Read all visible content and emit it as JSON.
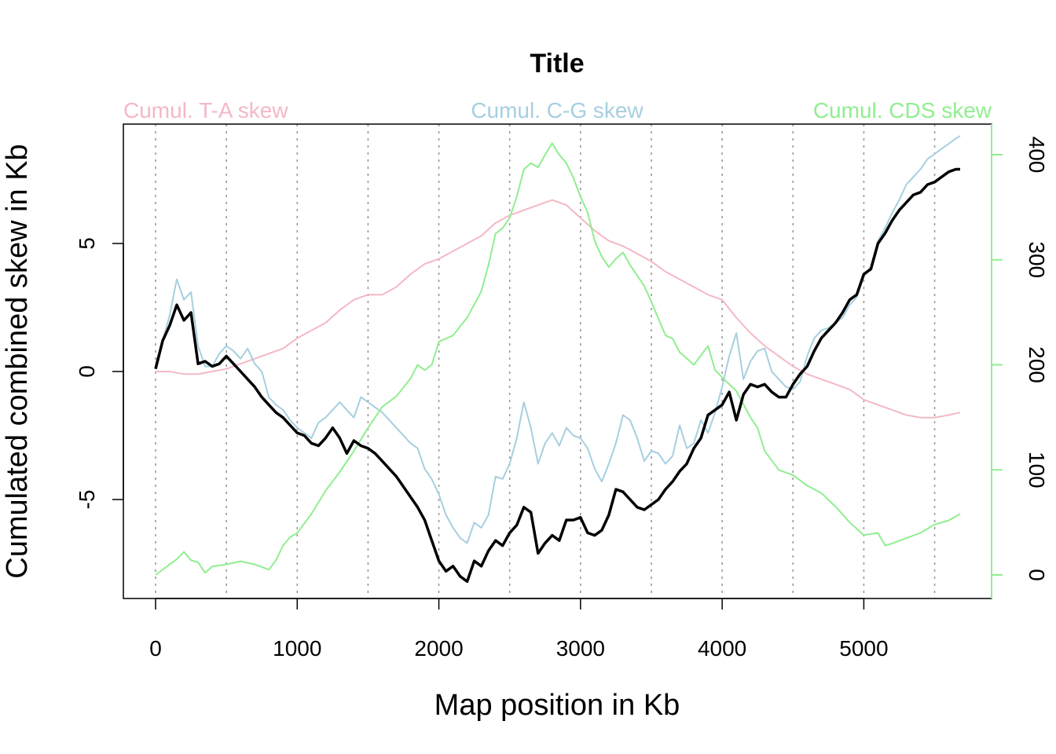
{
  "chart_data": {
    "type": "line",
    "title": "Title",
    "xlabel": "Map position in Kb",
    "ylabel": "Cumulated combined skew in Kb",
    "xlim": [
      0,
      5700
    ],
    "ylim": [
      -8.9,
      9.7
    ],
    "y2lim": [
      -24,
      427
    ],
    "x_ticks": [
      0,
      1000,
      2000,
      3000,
      4000,
      5000
    ],
    "y_ticks": [
      -5,
      0,
      5
    ],
    "y2_ticks": [
      0,
      100,
      200,
      300,
      400
    ],
    "vgrid_x": [
      0,
      500,
      1000,
      1500,
      2000,
      2500,
      3000,
      3500,
      4000,
      4500,
      5000,
      5500
    ],
    "grid": "vertical dotted",
    "legend": {
      "left": "Cumul. T-A skew",
      "center": "Cumul. C-G skew",
      "right": "Cumul. CDS skew"
    },
    "series": [
      {
        "name": "Cumul. T-A skew",
        "axis": "left",
        "color": "#F4B8C5",
        "x": [
          0,
          100,
          200,
          300,
          400,
          500,
          600,
          700,
          800,
          900,
          1000,
          1100,
          1200,
          1300,
          1400,
          1500,
          1600,
          1700,
          1800,
          1900,
          2000,
          2100,
          2200,
          2300,
          2400,
          2500,
          2600,
          2700,
          2800,
          2900,
          3000,
          3100,
          3200,
          3300,
          3400,
          3500,
          3600,
          3700,
          3800,
          3900,
          4000,
          4100,
          4200,
          4300,
          4400,
          4500,
          4600,
          4700,
          4800,
          4900,
          5000,
          5100,
          5200,
          5300,
          5400,
          5500,
          5600,
          5680
        ],
        "y": [
          0.0,
          0.0,
          -0.1,
          -0.1,
          0.0,
          0.1,
          0.3,
          0.5,
          0.7,
          0.9,
          1.3,
          1.6,
          1.9,
          2.4,
          2.8,
          3.0,
          3.0,
          3.3,
          3.8,
          4.2,
          4.4,
          4.7,
          5.0,
          5.3,
          5.8,
          6.1,
          6.3,
          6.5,
          6.7,
          6.5,
          6.0,
          5.5,
          5.1,
          4.9,
          4.6,
          4.3,
          3.9,
          3.6,
          3.3,
          3.0,
          2.8,
          2.1,
          1.5,
          1.0,
          0.6,
          0.2,
          -0.1,
          -0.3,
          -0.5,
          -0.7,
          -1.1,
          -1.3,
          -1.5,
          -1.7,
          -1.8,
          -1.8,
          -1.7,
          -1.6
        ]
      },
      {
        "name": "Cumul. C-G skew",
        "axis": "left",
        "color": "#A6CFE0",
        "x": [
          0,
          50,
          100,
          150,
          200,
          250,
          300,
          350,
          400,
          450,
          500,
          550,
          600,
          650,
          700,
          750,
          800,
          850,
          900,
          950,
          1000,
          1050,
          1100,
          1150,
          1200,
          1250,
          1300,
          1350,
          1400,
          1450,
          1500,
          1550,
          1600,
          1650,
          1700,
          1750,
          1800,
          1850,
          1900,
          1950,
          2000,
          2050,
          2100,
          2150,
          2200,
          2250,
          2300,
          2350,
          2400,
          2450,
          2500,
          2550,
          2600,
          2650,
          2700,
          2750,
          2800,
          2850,
          2900,
          2950,
          3000,
          3050,
          3100,
          3150,
          3200,
          3250,
          3300,
          3350,
          3400,
          3450,
          3500,
          3550,
          3600,
          3650,
          3700,
          3750,
          3800,
          3850,
          3900,
          3950,
          4000,
          4050,
          4100,
          4150,
          4200,
          4250,
          4300,
          4350,
          4400,
          4450,
          4500,
          4550,
          4600,
          4650,
          4700,
          4750,
          4800,
          4850,
          4900,
          4950,
          5000,
          5050,
          5100,
          5150,
          5200,
          5250,
          5300,
          5350,
          5400,
          5450,
          5500,
          5550,
          5600,
          5650,
          5680
        ],
        "y": [
          0.3,
          1.2,
          2.2,
          3.6,
          2.8,
          3.1,
          1.0,
          0.2,
          0.2,
          0.7,
          1.0,
          0.8,
          0.5,
          0.9,
          0.3,
          0.0,
          -1.0,
          -1.3,
          -1.5,
          -1.9,
          -2.2,
          -2.4,
          -2.6,
          -2.0,
          -1.8,
          -1.5,
          -1.2,
          -1.5,
          -1.8,
          -1.0,
          -1.2,
          -1.4,
          -1.6,
          -1.9,
          -2.2,
          -2.5,
          -2.8,
          -3.0,
          -3.8,
          -4.2,
          -4.8,
          -5.6,
          -6.1,
          -6.5,
          -6.7,
          -5.9,
          -6.1,
          -5.6,
          -4.1,
          -4.2,
          -3.6,
          -2.6,
          -1.2,
          -2.2,
          -3.6,
          -2.8,
          -2.4,
          -2.9,
          -2.2,
          -2.5,
          -2.6,
          -3.0,
          -3.8,
          -4.3,
          -3.6,
          -2.8,
          -1.7,
          -1.9,
          -2.6,
          -3.5,
          -3.1,
          -3.2,
          -3.6,
          -3.3,
          -2.1,
          -3.0,
          -2.8,
          -1.9,
          -2.4,
          -1.6,
          -0.6,
          0.6,
          1.5,
          -0.3,
          0.4,
          0.8,
          0.9,
          0.0,
          -0.3,
          -0.6,
          -0.7,
          -0.4,
          0.6,
          1.3,
          1.6,
          1.7,
          1.9,
          2.1,
          2.6,
          2.9,
          3.7,
          4.1,
          5.1,
          5.6,
          6.2,
          6.7,
          7.3,
          7.6,
          7.9,
          8.3,
          8.5,
          8.7,
          8.9,
          9.1,
          9.2
        ]
      },
      {
        "name": "Cumul. CDS skew",
        "axis": "right",
        "color": "#90EE90",
        "x": [
          0,
          100,
          150,
          200,
          250,
          300,
          350,
          400,
          500,
          600,
          700,
          800,
          850,
          900,
          950,
          1000,
          1100,
          1200,
          1300,
          1400,
          1500,
          1600,
          1700,
          1800,
          1850,
          1900,
          1950,
          2000,
          2100,
          2200,
          2300,
          2350,
          2400,
          2450,
          2500,
          2550,
          2600,
          2650,
          2700,
          2750,
          2800,
          2850,
          2900,
          2950,
          3000,
          3050,
          3100,
          3150,
          3200,
          3250,
          3300,
          3350,
          3400,
          3450,
          3500,
          3600,
          3650,
          3700,
          3800,
          3900,
          3950,
          4000,
          4100,
          4200,
          4250,
          4300,
          4400,
          4500,
          4600,
          4700,
          4800,
          4900,
          5000,
          5100,
          5150,
          5200,
          5300,
          5400,
          5500,
          5600,
          5680
        ],
        "y": [
          0,
          10,
          15,
          22,
          14,
          12,
          2,
          8,
          10,
          13,
          10,
          5,
          14,
          28,
          36,
          40,
          58,
          80,
          98,
          118,
          140,
          160,
          170,
          187,
          200,
          195,
          200,
          222,
          228,
          245,
          270,
          295,
          325,
          330,
          340,
          360,
          386,
          392,
          388,
          400,
          411,
          400,
          392,
          378,
          360,
          345,
          318,
          303,
          293,
          301,
          307,
          295,
          285,
          275,
          260,
          228,
          225,
          212,
          200,
          218,
          195,
          188,
          175,
          150,
          140,
          118,
          100,
          95,
          85,
          78,
          65,
          50,
          38,
          40,
          28,
          30,
          35,
          40,
          48,
          52,
          58
        ]
      },
      {
        "name": "",
        "axis": "left",
        "color": "#000000",
        "x": [
          0,
          50,
          100,
          150,
          200,
          250,
          300,
          350,
          400,
          450,
          500,
          550,
          600,
          650,
          700,
          750,
          800,
          850,
          900,
          950,
          1000,
          1050,
          1100,
          1150,
          1200,
          1250,
          1300,
          1350,
          1400,
          1450,
          1500,
          1550,
          1600,
          1650,
          1700,
          1750,
          1800,
          1850,
          1900,
          1950,
          2000,
          2050,
          2100,
          2150,
          2200,
          2250,
          2300,
          2350,
          2400,
          2450,
          2500,
          2550,
          2600,
          2650,
          2700,
          2750,
          2800,
          2850,
          2900,
          2950,
          3000,
          3050,
          3100,
          3150,
          3200,
          3250,
          3300,
          3350,
          3400,
          3450,
          3500,
          3550,
          3600,
          3650,
          3700,
          3750,
          3800,
          3850,
          3900,
          3950,
          4000,
          4050,
          4100,
          4150,
          4200,
          4250,
          4300,
          4350,
          4400,
          4450,
          4500,
          4550,
          4600,
          4650,
          4700,
          4750,
          4800,
          4850,
          4900,
          4950,
          5000,
          5050,
          5100,
          5150,
          5200,
          5250,
          5300,
          5350,
          5400,
          5450,
          5500,
          5550,
          5600,
          5650,
          5680
        ],
        "y": [
          0.1,
          1.2,
          1.8,
          2.6,
          2.0,
          2.3,
          0.3,
          0.4,
          0.2,
          0.3,
          0.6,
          0.3,
          0.0,
          -0.3,
          -0.6,
          -1.0,
          -1.3,
          -1.6,
          -1.8,
          -2.1,
          -2.4,
          -2.5,
          -2.8,
          -2.9,
          -2.6,
          -2.2,
          -2.6,
          -3.2,
          -2.7,
          -2.9,
          -3.0,
          -3.2,
          -3.5,
          -3.8,
          -4.1,
          -4.5,
          -4.9,
          -5.3,
          -5.8,
          -6.6,
          -7.4,
          -7.8,
          -7.6,
          -8.0,
          -8.2,
          -7.4,
          -7.6,
          -7.0,
          -6.6,
          -6.8,
          -6.3,
          -6.0,
          -5.3,
          -5.5,
          -7.1,
          -6.7,
          -6.4,
          -6.6,
          -5.8,
          -5.8,
          -5.7,
          -6.3,
          -6.4,
          -6.2,
          -5.6,
          -4.6,
          -4.7,
          -5.0,
          -5.3,
          -5.4,
          -5.2,
          -5.0,
          -4.6,
          -4.3,
          -3.9,
          -3.6,
          -3.0,
          -2.6,
          -1.7,
          -1.5,
          -1.3,
          -0.8,
          -1.9,
          -0.9,
          -0.5,
          -0.6,
          -0.5,
          -0.8,
          -1.0,
          -1.0,
          -0.5,
          -0.1,
          0.2,
          0.8,
          1.3,
          1.6,
          1.9,
          2.3,
          2.8,
          3.0,
          3.8,
          4.0,
          5.0,
          5.4,
          5.9,
          6.3,
          6.6,
          6.9,
          7.0,
          7.3,
          7.4,
          7.6,
          7.8,
          7.9,
          7.9
        ]
      }
    ]
  }
}
